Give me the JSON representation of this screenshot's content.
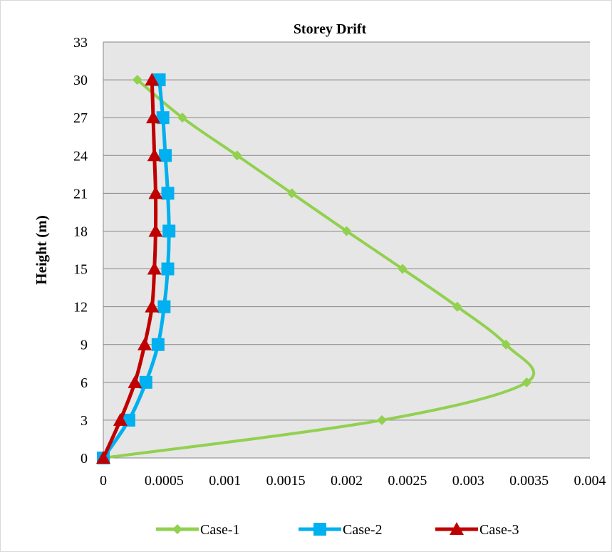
{
  "chart_data": {
    "type": "line",
    "title": "Storey Drift",
    "xlabel": "",
    "ylabel": "Height (m)",
    "xlim": [
      0,
      0.004
    ],
    "ylim": [
      0,
      33
    ],
    "x_ticks": [
      "0",
      "0.0005",
      "0.001",
      "0.0015",
      "0.002",
      "0.0025",
      "0.003",
      "0.0035",
      "0.004"
    ],
    "y_ticks": [
      "0",
      "3",
      "6",
      "9",
      "12",
      "15",
      "18",
      "21",
      "24",
      "27",
      "30",
      "33"
    ],
    "grid": "horizontal",
    "legend_position": "bottom",
    "series": [
      {
        "name": "Case-1",
        "color": "#92d050",
        "marker": "diamond",
        "points": [
          [
            0,
            0
          ],
          [
            0.00229,
            3
          ],
          [
            0.00348,
            6
          ],
          [
            0.00331,
            9
          ],
          [
            0.00291,
            12
          ],
          [
            0.00246,
            15
          ],
          [
            0.002,
            18
          ],
          [
            0.00155,
            21
          ],
          [
            0.0011,
            24
          ],
          [
            0.00065,
            27
          ],
          [
            0.00028,
            30
          ]
        ]
      },
      {
        "name": "Case-2",
        "color": "#00b0f0",
        "marker": "square",
        "points": [
          [
            0,
            0
          ],
          [
            0.00021,
            3
          ],
          [
            0.00035,
            6
          ],
          [
            0.00045,
            9
          ],
          [
            0.0005,
            12
          ],
          [
            0.00053,
            15
          ],
          [
            0.00054,
            18
          ],
          [
            0.00053,
            21
          ],
          [
            0.00051,
            24
          ],
          [
            0.00049,
            27
          ],
          [
            0.00046,
            30
          ]
        ]
      },
      {
        "name": "Case-3",
        "color": "#c00000",
        "marker": "triangle",
        "points": [
          [
            0,
            0
          ],
          [
            0.00014,
            3
          ],
          [
            0.00026,
            6
          ],
          [
            0.00034,
            9
          ],
          [
            0.0004,
            12
          ],
          [
            0.00042,
            15
          ],
          [
            0.00043,
            18
          ],
          [
            0.00043,
            21
          ],
          [
            0.00042,
            24
          ],
          [
            0.00041,
            27
          ],
          [
            0.0004,
            30
          ]
        ]
      }
    ]
  }
}
